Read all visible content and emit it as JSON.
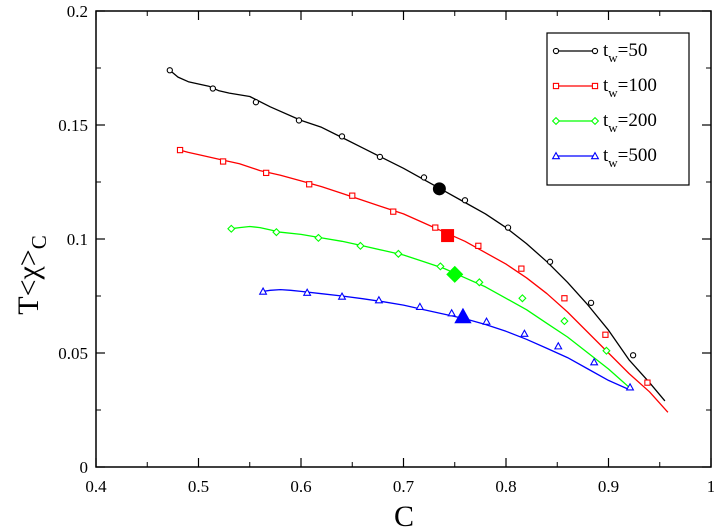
{
  "chart_data": {
    "type": "line",
    "xlabel": "C",
    "ylabel_main": "T",
    "ylabel_chi": "<χ>",
    "ylabel_sub": "C",
    "xlim": [
      0.4,
      1.0
    ],
    "ylim": [
      0,
      0.2
    ],
    "xticks": [
      0.4,
      0.5,
      0.6,
      0.7,
      0.8,
      0.9,
      1.0
    ],
    "xtick_labels": [
      "0.4",
      "0.5",
      "0.6",
      "0.7",
      "0.8",
      "0.9",
      "1"
    ],
    "yticks": [
      0,
      0.05,
      0.1,
      0.15,
      0.2
    ],
    "ytick_labels": [
      "0",
      "0.05",
      "0.1",
      "0.15",
      "0.2"
    ],
    "grid": false,
    "legend_position": "top-right",
    "series": [
      {
        "name": "t_w=50",
        "legend_prefix": "t",
        "legend_sub": "w",
        "legend_suffix": "=50",
        "color": "#000000",
        "marker": "circle",
        "line": [
          [
            0.472,
            0.174
          ],
          [
            0.48,
            0.171
          ],
          [
            0.49,
            0.169
          ],
          [
            0.5,
            0.168
          ],
          [
            0.51,
            0.167
          ],
          [
            0.52,
            0.165
          ],
          [
            0.53,
            0.164
          ],
          [
            0.55,
            0.1625
          ],
          [
            0.57,
            0.158
          ],
          [
            0.6,
            0.152
          ],
          [
            0.62,
            0.149
          ],
          [
            0.64,
            0.1445
          ],
          [
            0.66,
            0.14
          ],
          [
            0.68,
            0.1355
          ],
          [
            0.7,
            0.131
          ],
          [
            0.72,
            0.126
          ],
          [
            0.74,
            0.121
          ],
          [
            0.76,
            0.116
          ],
          [
            0.78,
            0.111
          ],
          [
            0.8,
            0.105
          ],
          [
            0.82,
            0.098
          ],
          [
            0.84,
            0.09
          ],
          [
            0.86,
            0.081
          ],
          [
            0.88,
            0.071
          ],
          [
            0.9,
            0.06
          ],
          [
            0.92,
            0.047
          ],
          [
            0.94,
            0.037
          ],
          [
            0.955,
            0.029
          ]
        ],
        "markers": [
          [
            0.472,
            0.174
          ],
          [
            0.514,
            0.166
          ],
          [
            0.556,
            0.16
          ],
          [
            0.598,
            0.152
          ],
          [
            0.64,
            0.145
          ],
          [
            0.677,
            0.136
          ],
          [
            0.72,
            0.127
          ],
          [
            0.76,
            0.117
          ],
          [
            0.802,
            0.105
          ],
          [
            0.843,
            0.09
          ],
          [
            0.883,
            0.072
          ],
          [
            0.924,
            0.049
          ]
        ],
        "highlight": [
          0.735,
          0.122
        ]
      },
      {
        "name": "t_w=100",
        "legend_prefix": "t",
        "legend_sub": "w",
        "legend_suffix": "=100",
        "color": "#ff0000",
        "marker": "square",
        "line": [
          [
            0.482,
            0.139
          ],
          [
            0.49,
            0.138
          ],
          [
            0.5,
            0.137
          ],
          [
            0.52,
            0.135
          ],
          [
            0.54,
            0.133
          ],
          [
            0.56,
            0.13
          ],
          [
            0.58,
            0.128
          ],
          [
            0.6,
            0.1255
          ],
          [
            0.62,
            0.123
          ],
          [
            0.64,
            0.12
          ],
          [
            0.66,
            0.117
          ],
          [
            0.68,
            0.114
          ],
          [
            0.7,
            0.111
          ],
          [
            0.72,
            0.107
          ],
          [
            0.74,
            0.103
          ],
          [
            0.76,
            0.099
          ],
          [
            0.78,
            0.094
          ],
          [
            0.8,
            0.089
          ],
          [
            0.82,
            0.083
          ],
          [
            0.84,
            0.076
          ],
          [
            0.86,
            0.068
          ],
          [
            0.88,
            0.059
          ],
          [
            0.9,
            0.05
          ],
          [
            0.92,
            0.041
          ],
          [
            0.94,
            0.033
          ],
          [
            0.958,
            0.024
          ]
        ],
        "markers": [
          [
            0.482,
            0.139
          ],
          [
            0.524,
            0.134
          ],
          [
            0.566,
            0.129
          ],
          [
            0.608,
            0.124
          ],
          [
            0.65,
            0.119
          ],
          [
            0.69,
            0.112
          ],
          [
            0.731,
            0.105
          ],
          [
            0.773,
            0.097
          ],
          [
            0.815,
            0.087
          ],
          [
            0.857,
            0.074
          ],
          [
            0.897,
            0.058
          ],
          [
            0.938,
            0.037
          ]
        ],
        "highlight": [
          0.743,
          0.1015
        ]
      },
      {
        "name": "t_w=200",
        "legend_prefix": "t",
        "legend_sub": "w",
        "legend_suffix": "=200",
        "color": "#00ff00",
        "marker": "diamond",
        "line": [
          [
            0.532,
            0.1045
          ],
          [
            0.54,
            0.105
          ],
          [
            0.55,
            0.1055
          ],
          [
            0.56,
            0.105
          ],
          [
            0.57,
            0.104
          ],
          [
            0.58,
            0.103
          ],
          [
            0.6,
            0.102
          ],
          [
            0.62,
            0.1005
          ],
          [
            0.64,
            0.099
          ],
          [
            0.66,
            0.097
          ],
          [
            0.68,
            0.095
          ],
          [
            0.7,
            0.093
          ],
          [
            0.72,
            0.09
          ],
          [
            0.74,
            0.087
          ],
          [
            0.76,
            0.083
          ],
          [
            0.78,
            0.079
          ],
          [
            0.8,
            0.074
          ],
          [
            0.82,
            0.069
          ],
          [
            0.84,
            0.063
          ],
          [
            0.86,
            0.057
          ],
          [
            0.88,
            0.05
          ],
          [
            0.9,
            0.043
          ],
          [
            0.92,
            0.035
          ]
        ],
        "markers": [
          [
            0.532,
            0.1045
          ],
          [
            0.576,
            0.103
          ],
          [
            0.617,
            0.1005
          ],
          [
            0.658,
            0.097
          ],
          [
            0.695,
            0.0935
          ],
          [
            0.736,
            0.088
          ],
          [
            0.774,
            0.081
          ],
          [
            0.816,
            0.074
          ],
          [
            0.857,
            0.064
          ],
          [
            0.898,
            0.051
          ]
        ],
        "highlight": [
          0.75,
          0.0845
        ]
      },
      {
        "name": "t_w=500",
        "legend_prefix": "t",
        "legend_sub": "w",
        "legend_suffix": "=500",
        "color": "#0000ff",
        "marker": "triangle",
        "line": [
          [
            0.563,
            0.077
          ],
          [
            0.57,
            0.0775
          ],
          [
            0.58,
            0.0778
          ],
          [
            0.59,
            0.0775
          ],
          [
            0.6,
            0.077
          ],
          [
            0.62,
            0.076
          ],
          [
            0.64,
            0.075
          ],
          [
            0.66,
            0.0738
          ],
          [
            0.68,
            0.0725
          ],
          [
            0.7,
            0.071
          ],
          [
            0.72,
            0.069
          ],
          [
            0.74,
            0.067
          ],
          [
            0.76,
            0.065
          ],
          [
            0.78,
            0.0625
          ],
          [
            0.8,
            0.0595
          ],
          [
            0.82,
            0.056
          ],
          [
            0.84,
            0.052
          ],
          [
            0.86,
            0.048
          ],
          [
            0.88,
            0.043
          ],
          [
            0.9,
            0.038
          ],
          [
            0.92,
            0.034
          ]
        ],
        "markers": [
          [
            0.563,
            0.077
          ],
          [
            0.606,
            0.0765
          ],
          [
            0.64,
            0.0748
          ],
          [
            0.676,
            0.0732
          ],
          [
            0.716,
            0.0703
          ],
          [
            0.747,
            0.0675
          ],
          [
            0.781,
            0.0638
          ],
          [
            0.818,
            0.0585
          ],
          [
            0.851,
            0.053
          ],
          [
            0.886,
            0.046
          ],
          [
            0.921,
            0.035
          ]
        ],
        "highlight": [
          0.758,
          0.066
        ]
      }
    ]
  }
}
